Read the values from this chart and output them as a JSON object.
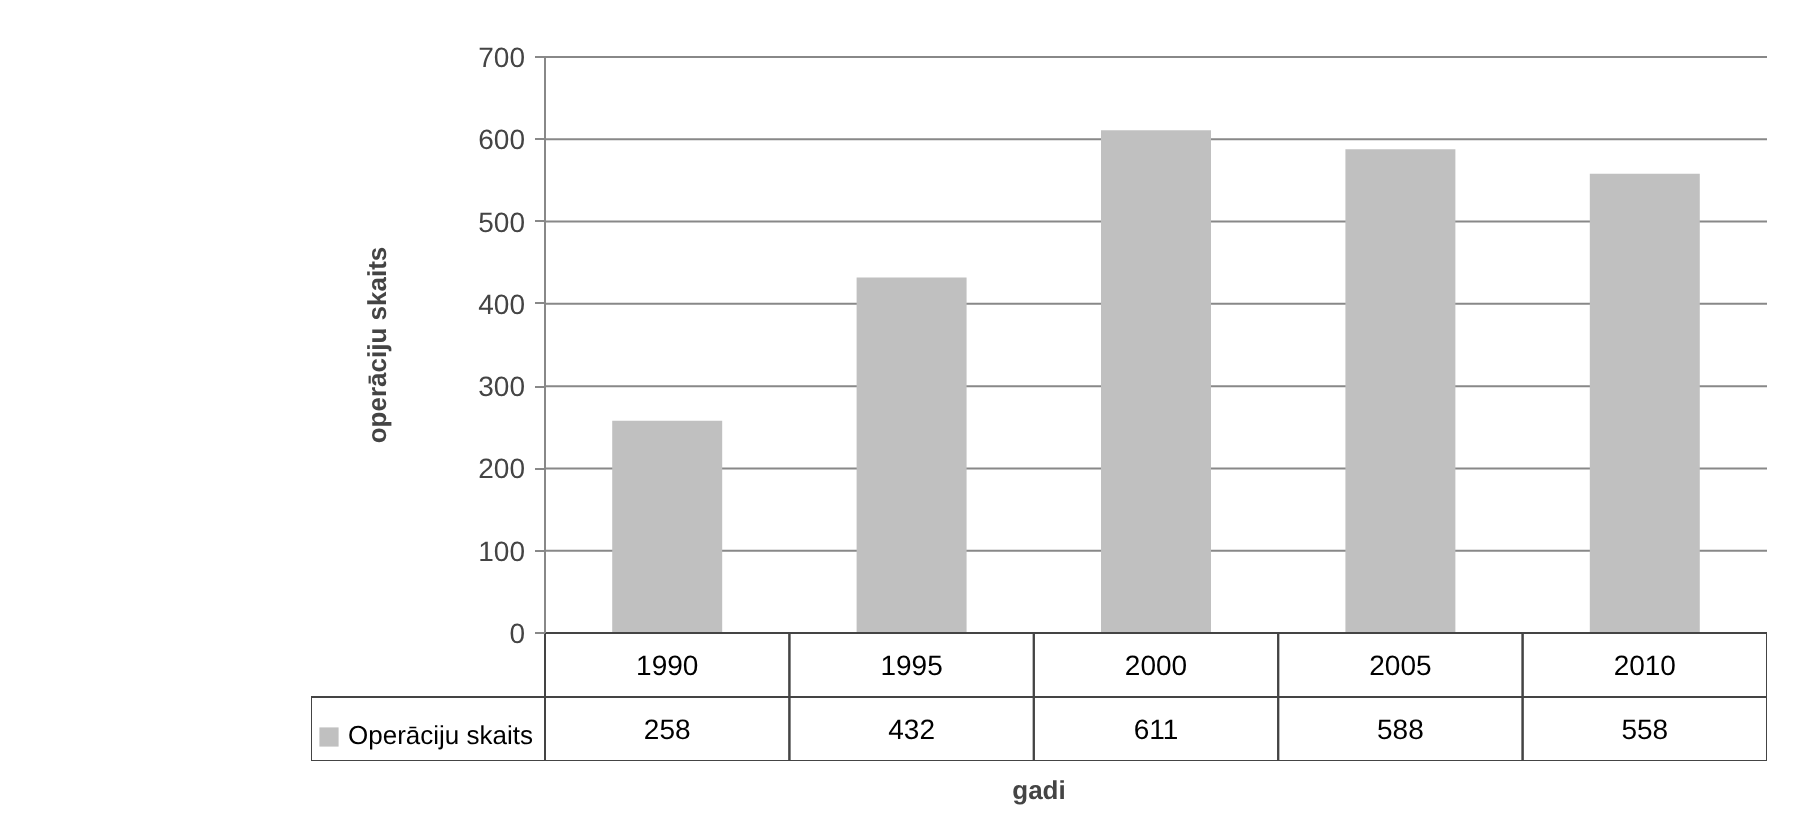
{
  "chart_data": {
    "type": "bar",
    "xlabel": "gadi",
    "ylabel": "operāciju skaits",
    "categories": [
      "1990",
      "1995",
      "2000",
      "2005",
      "2010"
    ],
    "series": [
      {
        "name": "Operāciju skaits",
        "color": "#c0c0c0",
        "values": [
          258,
          432,
          611,
          588,
          558
        ]
      }
    ],
    "ylim": [
      0,
      700
    ],
    "yticks": [
      0,
      100,
      200,
      300,
      400,
      500,
      600,
      700
    ],
    "grid": "y",
    "data_labels": true,
    "legend": "bottom"
  }
}
